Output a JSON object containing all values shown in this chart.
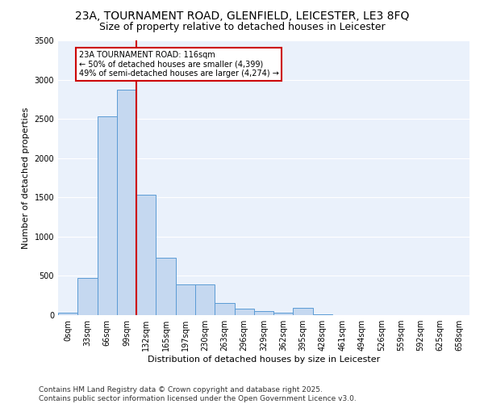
{
  "title_line1": "23A, TOURNAMENT ROAD, GLENFIELD, LEICESTER, LE3 8FQ",
  "title_line2": "Size of property relative to detached houses in Leicester",
  "xlabel": "Distribution of detached houses by size in Leicester",
  "ylabel": "Number of detached properties",
  "bar_color": "#c5d8f0",
  "bar_edge_color": "#5b9bd5",
  "bg_color": "#eaf1fb",
  "grid_color": "#ffffff",
  "vline_color": "#cc0000",
  "vline_x": 3.5,
  "annotation_text": "23A TOURNAMENT ROAD: 116sqm\n← 50% of detached houses are smaller (4,399)\n49% of semi-detached houses are larger (4,274) →",
  "annotation_box_color": "#cc0000",
  "categories": [
    "0sqm",
    "33sqm",
    "66sqm",
    "99sqm",
    "132sqm",
    "165sqm",
    "197sqm",
    "230sqm",
    "263sqm",
    "296sqm",
    "329sqm",
    "362sqm",
    "395sqm",
    "428sqm",
    "461sqm",
    "494sqm",
    "526sqm",
    "559sqm",
    "592sqm",
    "625sqm",
    "658sqm"
  ],
  "values": [
    30,
    470,
    2530,
    2870,
    1530,
    730,
    390,
    390,
    155,
    80,
    55,
    30,
    90,
    10,
    5,
    5,
    5,
    5,
    5,
    5,
    5
  ],
  "ylim": [
    0,
    3500
  ],
  "yticks": [
    0,
    500,
    1000,
    1500,
    2000,
    2500,
    3000,
    3500
  ],
  "footnote": "Contains HM Land Registry data © Crown copyright and database right 2025.\nContains public sector information licensed under the Open Government Licence v3.0.",
  "title_fontsize": 10,
  "subtitle_fontsize": 9,
  "tick_fontsize": 7,
  "label_fontsize": 8,
  "footnote_fontsize": 6.5
}
